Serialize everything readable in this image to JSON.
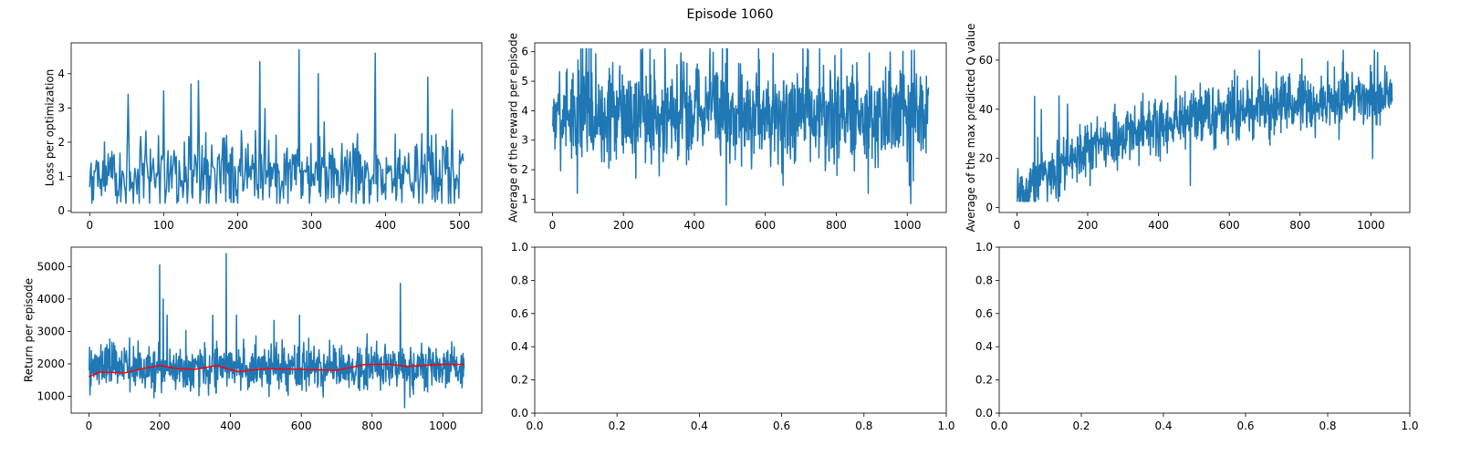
{
  "suptitle": "Episode 1060",
  "colors": {
    "series": "#1f77b4",
    "moving_average": "#ff0000"
  },
  "chart_data": [
    {
      "type": "line",
      "position": "top-left",
      "ylabel": "Loss per optimization",
      "xlim": [
        -25,
        530
      ],
      "ylim": [
        -0.05,
        4.9
      ],
      "xticks": [
        0,
        100,
        200,
        300,
        400,
        500
      ],
      "yticks": [
        0,
        1,
        2,
        3,
        4
      ],
      "x_range": [
        0,
        505
      ],
      "y_base": 1.05,
      "y_spread": 0.55,
      "y_min": 0.22,
      "y_max": 4.7,
      "spikes": [
        [
          52,
          3.4
        ],
        [
          100,
          3.5
        ],
        [
          137,
          3.7
        ],
        [
          147,
          3.8
        ],
        [
          230,
          4.35
        ],
        [
          283,
          4.7
        ],
        [
          309,
          4.0
        ],
        [
          386,
          4.6
        ],
        [
          457,
          3.9
        ],
        [
          490,
          2.95
        ]
      ],
      "series": [
        {
          "values": []
        }
      ]
    },
    {
      "type": "line",
      "position": "top-middle",
      "ylabel": "Average of the reward per episode",
      "xlim": [
        -50,
        1110
      ],
      "ylim": [
        0.55,
        6.3
      ],
      "xticks": [
        0,
        200,
        400,
        600,
        800,
        1000
      ],
      "yticks": [
        1,
        2,
        3,
        4,
        5,
        6
      ],
      "x_range": [
        0,
        1060
      ],
      "y_base": 3.9,
      "y_spread": 0.85,
      "y_min": 1.2,
      "y_max": 6.1,
      "spikes": [
        [
          490,
          0.8
        ],
        [
          1010,
          0.85
        ],
        [
          1020,
          6.05
        ],
        [
          70,
          1.2
        ]
      ],
      "series": [
        {
          "values": []
        }
      ]
    },
    {
      "type": "line",
      "position": "top-right",
      "ylabel": "Average of the max predicted Q value",
      "xlim": [
        -50,
        1110
      ],
      "ylim": [
        -2,
        67
      ],
      "xticks": [
        0,
        200,
        400,
        600,
        800,
        1000
      ],
      "yticks": [
        0,
        20,
        40,
        60
      ],
      "x_range": [
        0,
        1060
      ],
      "y_trend": "saturating",
      "y_start": 4,
      "y_end": 46,
      "y_spread": 6,
      "y_min": 2.5,
      "y_max": 64,
      "spikes": [
        [
          490,
          9
        ],
        [
          1005,
          20
        ],
        [
          922,
          64
        ]
      ],
      "series": [
        {
          "values": []
        }
      ]
    },
    {
      "type": "line",
      "position": "bottom-left",
      "ylabel": "Return per episode",
      "xlim": [
        -50,
        1110
      ],
      "ylim": [
        480,
        5600
      ],
      "xticks": [
        0,
        200,
        400,
        600,
        800,
        1000
      ],
      "yticks": [
        1000,
        2000,
        3000,
        4000,
        5000
      ],
      "x_range": [
        0,
        1060
      ],
      "y_base": 1880,
      "y_spread": 340,
      "y_min": 650,
      "y_max": 3500,
      "spikes": [
        [
          200,
          5050
        ],
        [
          388,
          5400
        ],
        [
          880,
          4480
        ],
        [
          210,
          4000
        ],
        [
          350,
          3500
        ]
      ],
      "moving_average": [
        [
          0,
          1600
        ],
        [
          30,
          1750
        ],
        [
          100,
          1720
        ],
        [
          150,
          1850
        ],
        [
          200,
          1950
        ],
        [
          250,
          1850
        ],
        [
          300,
          1830
        ],
        [
          360,
          1950
        ],
        [
          420,
          1760
        ],
        [
          500,
          1850
        ],
        [
          600,
          1830
        ],
        [
          700,
          1800
        ],
        [
          780,
          1980
        ],
        [
          850,
          1990
        ],
        [
          900,
          1920
        ],
        [
          1000,
          1990
        ],
        [
          1060,
          1980
        ]
      ],
      "series": [
        {
          "values": []
        }
      ]
    },
    {
      "type": "line",
      "position": "bottom-middle",
      "xlim": [
        0,
        1
      ],
      "ylim": [
        0,
        1
      ],
      "xticks": [
        0.0,
        0.2,
        0.4,
        0.6,
        0.8,
        1.0
      ],
      "yticks": [
        0.0,
        0.2,
        0.4,
        0.6,
        0.8,
        1.0
      ],
      "xtick_labels": [
        "0.0",
        "0.2",
        "0.4",
        "0.6",
        "0.8",
        "1.0"
      ],
      "ytick_labels": [
        "0.0",
        "0.2",
        "0.4",
        "0.6",
        "0.8",
        "1.0"
      ],
      "series": []
    },
    {
      "type": "line",
      "position": "bottom-right",
      "xlim": [
        0,
        1
      ],
      "ylim": [
        0,
        1
      ],
      "xticks": [
        0.0,
        0.2,
        0.4,
        0.6,
        0.8,
        1.0
      ],
      "yticks": [
        0.0,
        0.2,
        0.4,
        0.6,
        0.8,
        1.0
      ],
      "xtick_labels": [
        "0.0",
        "0.2",
        "0.4",
        "0.6",
        "0.8",
        "1.0"
      ],
      "ytick_labels": [
        "0.0",
        "0.2",
        "0.4",
        "0.6",
        "0.8",
        "1.0"
      ],
      "series": []
    }
  ]
}
